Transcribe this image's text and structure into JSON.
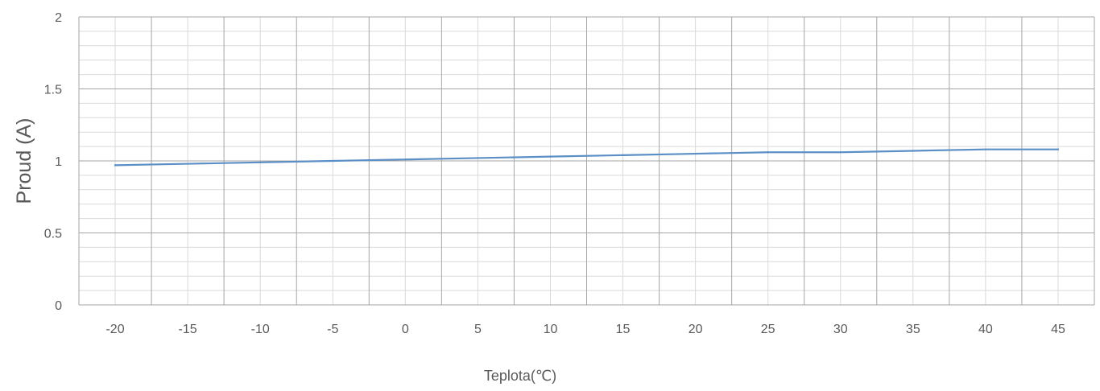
{
  "chart_data": {
    "type": "line",
    "xlabel": "Teplota(℃)",
    "ylabel": "Proud (A)",
    "categories": [
      "-20",
      "-15",
      "-10",
      "-5",
      "0",
      "5",
      "10",
      "15",
      "20",
      "25",
      "30",
      "35",
      "40",
      "45"
    ],
    "series": [
      {
        "values": [
          0.97,
          0.98,
          0.99,
          1.0,
          1.01,
          1.02,
          1.03,
          1.04,
          1.05,
          1.06,
          1.06,
          1.07,
          1.08,
          1.08
        ],
        "color": "#5b8fc6"
      }
    ],
    "ylim": [
      0,
      2
    ],
    "yticks": [
      "0",
      "0.5",
      "1",
      "1.5",
      "2"
    ],
    "grid": true,
    "colors": {
      "major_grid": "#a6a6a6",
      "minor_grid": "#d9d9d9",
      "text": "#595959"
    }
  }
}
